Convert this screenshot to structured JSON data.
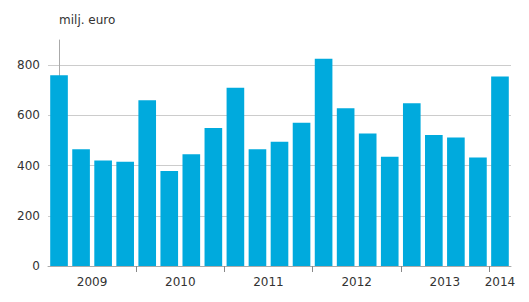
{
  "chart_data": {
    "type": "bar",
    "ylabel": "milj. euro",
    "categories": [
      "2009",
      null,
      null,
      null,
      "2010",
      null,
      null,
      null,
      "2011",
      null,
      null,
      null,
      "2012",
      null,
      null,
      null,
      "2013",
      null,
      null,
      null,
      "2014"
    ],
    "values": [
      760,
      465,
      420,
      415,
      660,
      378,
      445,
      550,
      710,
      465,
      495,
      570,
      825,
      628,
      528,
      435,
      648,
      522,
      512,
      432,
      755
    ],
    "color": "#00aadd",
    "ylim": [
      0,
      900
    ],
    "yticks": [
      0,
      200,
      400,
      600,
      800
    ],
    "grid": true
  }
}
